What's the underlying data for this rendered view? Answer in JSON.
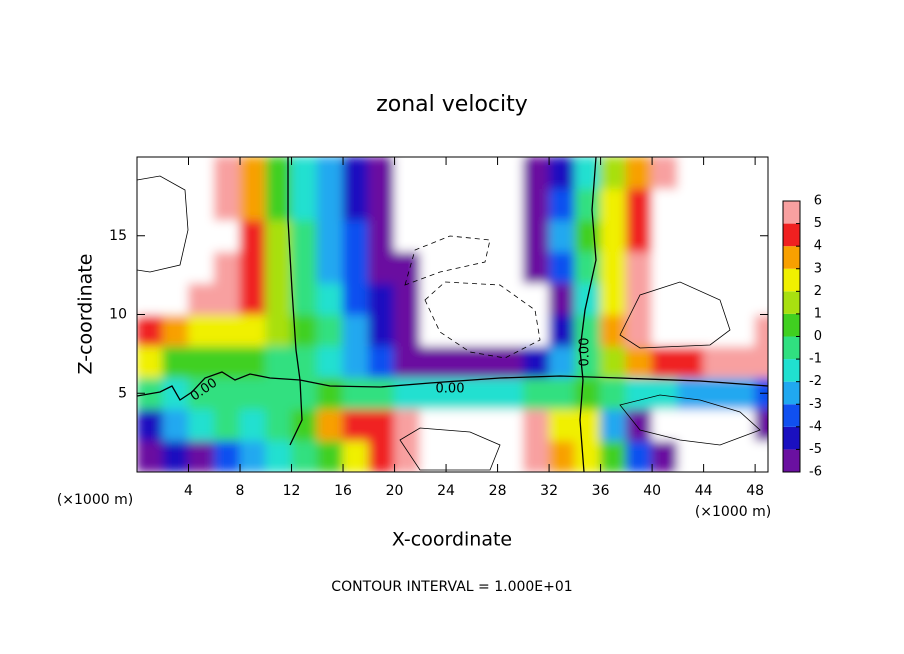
{
  "chart_data": {
    "type": "contour",
    "title": "zonal velocity",
    "x_label": "X-coordinate",
    "y_label": "Z-coordinate",
    "x_unit": "(×1000 m)",
    "y_unit": "(×1000 m)",
    "footnote": "CONTOUR INTERVAL = 1.000E+01",
    "contour_labels": [
      "0.00",
      "0.00",
      "0.00"
    ],
    "xlim": [
      0,
      49
    ],
    "ylim": [
      0,
      20
    ],
    "xticks": [
      4,
      8,
      12,
      16,
      20,
      24,
      28,
      32,
      36,
      40,
      44,
      48
    ],
    "yticks": [
      5,
      10,
      15
    ],
    "x": [
      1,
      3,
      5,
      7,
      9,
      11,
      13,
      15,
      17,
      19,
      21,
      23,
      25,
      27,
      29,
      31,
      33,
      35,
      37,
      39,
      41,
      43,
      45,
      47,
      49
    ],
    "y": [
      1,
      3,
      5,
      7,
      9,
      11,
      13,
      15,
      17,
      19
    ],
    "values": [
      [
        -6,
        -4,
        -5,
        -3,
        -2,
        -1,
        0,
        1,
        3,
        5,
        6,
        9,
        9,
        9,
        9,
        6,
        4,
        3,
        1,
        -3,
        -6,
        -9,
        -9,
        -9,
        -9
      ],
      [
        -4,
        -2,
        -1,
        0,
        -1,
        0,
        1,
        4,
        5,
        5,
        6,
        9,
        9,
        9,
        9,
        6,
        3,
        3,
        -2,
        -5,
        -9,
        -9,
        -9,
        -9,
        -5
      ],
      [
        0,
        -1,
        0,
        0,
        0,
        0,
        0,
        1,
        0,
        0,
        -1,
        -1,
        -1,
        -1,
        -1,
        0,
        0,
        1,
        0,
        -1,
        -1,
        -2,
        -2,
        -2,
        -3
      ],
      [
        3,
        1,
        1,
        1,
        1,
        0,
        0,
        -1,
        -2,
        -3,
        -5,
        -6,
        -6,
        -6,
        -5,
        -4,
        -2,
        0,
        2,
        4,
        5,
        5,
        6,
        6,
        6
      ],
      [
        5,
        4,
        3,
        3,
        3,
        2,
        1,
        0,
        -2,
        -4,
        -6,
        -9,
        -9,
        -9,
        -9,
        -9,
        -4,
        0,
        4,
        6,
        9,
        9,
        9,
        9,
        6
      ],
      [
        9,
        9,
        6,
        6,
        5,
        2,
        0,
        -1,
        -3,
        -4,
        -6,
        -9,
        -9,
        -9,
        -9,
        -9,
        -5,
        -1,
        3,
        6,
        9,
        9,
        9,
        9,
        9
      ],
      [
        9,
        9,
        9,
        6,
        5,
        2,
        0,
        -2,
        -3,
        -5,
        -6,
        -9,
        -9,
        -9,
        -9,
        -6,
        -3,
        0,
        3,
        6,
        9,
        9,
        9,
        9,
        9
      ],
      [
        9,
        9,
        9,
        9,
        5,
        2,
        0,
        -2,
        -3,
        -5,
        -9,
        -9,
        -9,
        -9,
        -9,
        -5,
        -2,
        1,
        3,
        5,
        9,
        9,
        9,
        9,
        9
      ],
      [
        9,
        9,
        9,
        6,
        4,
        1,
        -1,
        -2,
        -4,
        -6,
        -9,
        -9,
        -9,
        -9,
        -9,
        -5,
        -3,
        0,
        3,
        5,
        9,
        9,
        9,
        9,
        9
      ],
      [
        9,
        9,
        9,
        6,
        4,
        1,
        -1,
        -2,
        -4,
        -6,
        -9,
        -9,
        -9,
        -9,
        -9,
        -6,
        -4,
        -1,
        2,
        4,
        6,
        9,
        9,
        9,
        9
      ]
    ],
    "colorbar": {
      "levels": [
        -6,
        -5,
        -4,
        -3,
        -2,
        -1,
        0,
        1,
        2,
        3,
        4,
        5,
        6
      ],
      "colors": [
        "#6a10a0",
        "#1a10c0",
        "#1050f0",
        "#20a8f0",
        "#20e0d0",
        "#30e080",
        "#40d020",
        "#a8e010",
        "#f0f000",
        "#f8a000",
        "#f02020",
        "#f8a0a0"
      ]
    }
  }
}
